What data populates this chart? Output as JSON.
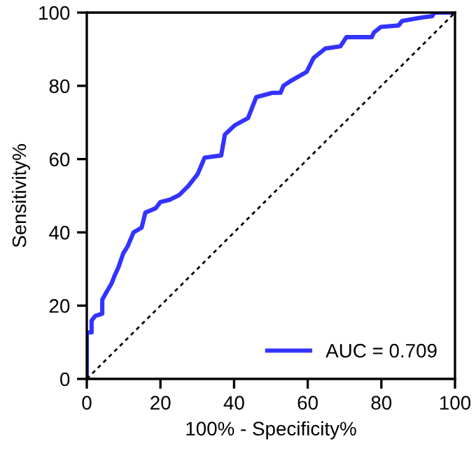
{
  "chart_data": {
    "type": "line",
    "xlabel": "100% - Specificity%",
    "ylabel": "Sensitivity%",
    "xlim": [
      0,
      100
    ],
    "ylim": [
      0,
      100
    ],
    "xticks": [
      0,
      20,
      40,
      60,
      80,
      100
    ],
    "yticks": [
      0,
      20,
      40,
      60,
      80,
      100
    ],
    "grid": false,
    "legend": "bottom right",
    "marker": "none",
    "series": [
      {
        "name": "AUC = 0.709",
        "color": "#3333ff",
        "line_style": "solid",
        "x": [
          0,
          0,
          1.3,
          1.3,
          2.3,
          4.2,
          4.2,
          5.4,
          6.7,
          7.6,
          8.6,
          9.9,
          11.1,
          12.7,
          14.9,
          15.9,
          18.7,
          20,
          22.5,
          25.1,
          27.6,
          30.1,
          32,
          36.5,
          37.5,
          40.3,
          43.8,
          45,
          46,
          50.4,
          52.6,
          53.4,
          55.3,
          59.7,
          61.6,
          64.8,
          68.9,
          70.5,
          77.4,
          78,
          79.9,
          84.7,
          85.6,
          91.3,
          93.8,
          94.4,
          100
        ],
        "values": [
          0,
          12.7,
          12.7,
          15.9,
          17.2,
          17.8,
          21.6,
          23.8,
          26,
          28.3,
          30.5,
          34.3,
          36.2,
          40,
          41.3,
          45.4,
          46.6,
          48.3,
          48.9,
          50.2,
          52.7,
          55.9,
          60.4,
          61,
          66.7,
          69.3,
          71.2,
          74.3,
          76.9,
          78.1,
          78.1,
          80,
          81.3,
          83.8,
          87.6,
          90.2,
          90.8,
          93.3,
          93.3,
          94.6,
          96.1,
          96.5,
          97.7,
          98.7,
          99,
          100,
          100
        ]
      },
      {
        "color": "#000000",
        "line_style": "dotted",
        "x": [
          0,
          100
        ],
        "values": [
          0,
          100
        ]
      }
    ]
  }
}
